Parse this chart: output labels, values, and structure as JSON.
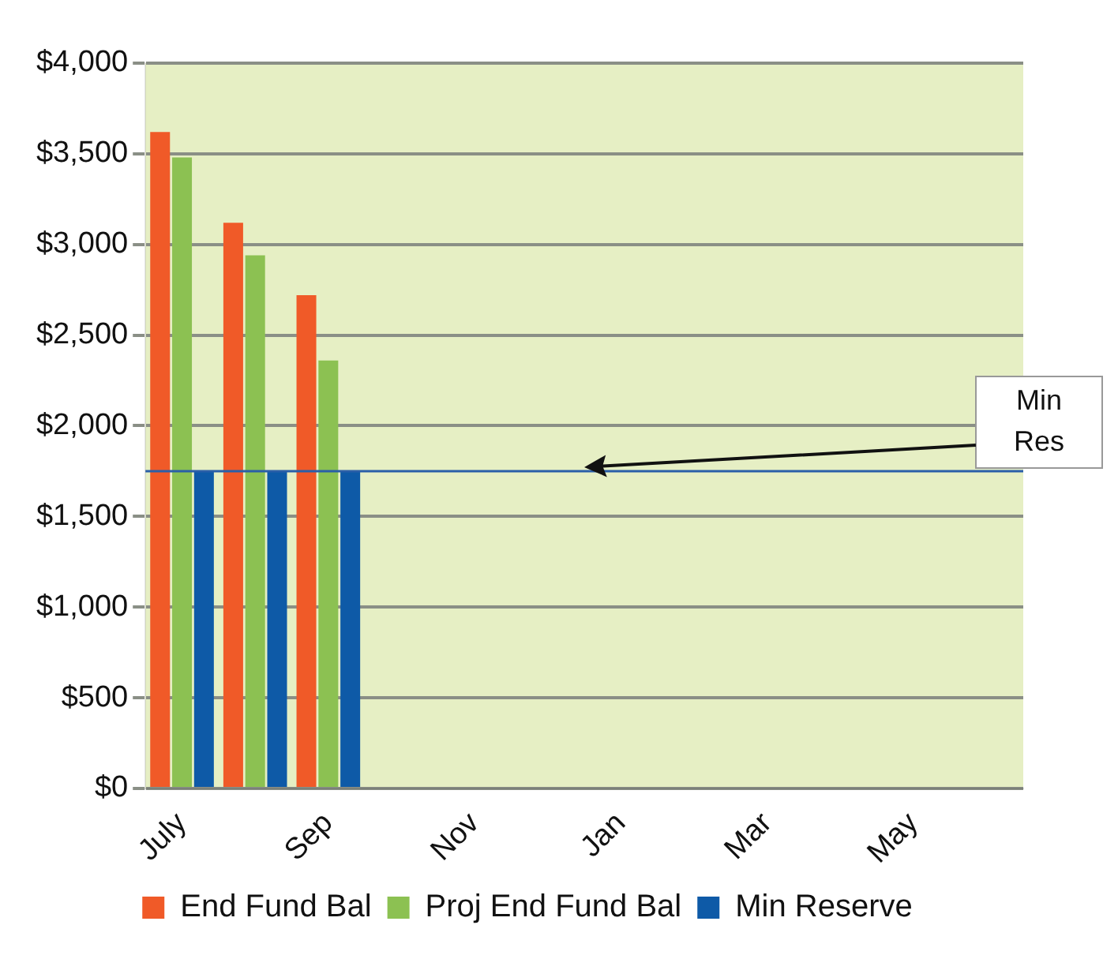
{
  "chart_data": {
    "type": "bar",
    "categories": [
      "July",
      null,
      "Sep",
      null,
      "Nov",
      null,
      "Jan",
      null,
      "Mar",
      null,
      "May",
      null
    ],
    "series": [
      {
        "name": "End Fund Bal",
        "color": "#f05a28",
        "values": [
          3620,
          3120,
          2720,
          null,
          null,
          null,
          null,
          null,
          null,
          null,
          null,
          null
        ]
      },
      {
        "name": "Proj End Fund Bal",
        "color": "#8cc152",
        "values": [
          3480,
          2940,
          2360,
          null,
          null,
          null,
          null,
          null,
          null,
          null,
          null,
          null
        ]
      },
      {
        "name": "Min Reserve",
        "color": "#0e5aa7",
        "values": [
          1750,
          1750,
          1750,
          null,
          null,
          null,
          null,
          null,
          null,
          null,
          null,
          null
        ]
      }
    ],
    "ylim": [
      0,
      4000
    ],
    "yticks": [
      {
        "value": 0,
        "label": "$0"
      },
      {
        "value": 500,
        "label": "$500"
      },
      {
        "value": 1000,
        "label": "$1,000"
      },
      {
        "value": 1500,
        "label": "$1,500"
      },
      {
        "value": 2000,
        "label": "$2,000"
      },
      {
        "value": 2500,
        "label": "$2,500"
      },
      {
        "value": 3000,
        "label": "$3,000"
      },
      {
        "value": 3500,
        "label": "$3,500"
      },
      {
        "value": 4000,
        "label": "$4,000"
      }
    ],
    "ref_lines": [
      {
        "axis": "y",
        "value": 1750,
        "label": "Min Res",
        "color": "#2a5fa8"
      }
    ],
    "grid": "y",
    "legend": "bottom"
  }
}
